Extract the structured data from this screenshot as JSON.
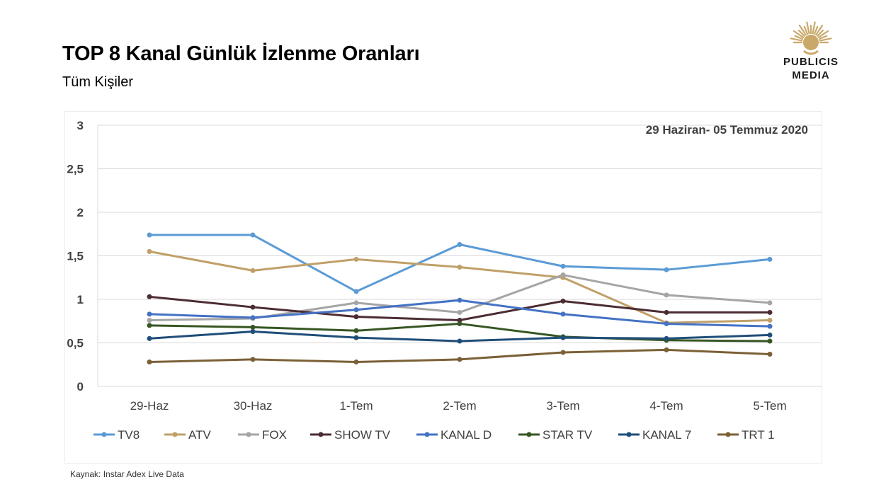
{
  "header": {
    "title": "TOP 8 Kanal Günlük İzlenme Oranları",
    "subtitle": "Tüm Kişiler"
  },
  "logo": {
    "line1": "PUBLICIS",
    "line2": "MEDIA",
    "color": "#c9a86a"
  },
  "source": "Kaynak: Instar  Adex Live Data",
  "chart_data": {
    "type": "line",
    "date_range_label": "29 Haziran- 05 Temmuz 2020",
    "categories": [
      "29-Haz",
      "30-Haz",
      "1-Tem",
      "2-Tem",
      "3-Tem",
      "4-Tem",
      "5-Tem"
    ],
    "ylim": [
      0,
      3
    ],
    "yticks": [
      0,
      0.5,
      1,
      1.5,
      2,
      2.5,
      3
    ],
    "ytick_labels": [
      "0",
      "0,5",
      "1",
      "1,5",
      "2",
      "2,5",
      "3"
    ],
    "grid": true,
    "legend_position": "bottom",
    "series": [
      {
        "name": "TV8",
        "color": "#5b9bd5",
        "values": [
          1.74,
          1.74,
          1.09,
          1.63,
          1.38,
          1.34,
          1.46
        ]
      },
      {
        "name": "ATV",
        "color": "#c0a068",
        "values": [
          1.55,
          1.33,
          1.46,
          1.37,
          1.25,
          0.73,
          0.76
        ]
      },
      {
        "name": "FOX",
        "color": "#a5a5a5",
        "values": [
          0.76,
          0.78,
          0.96,
          0.85,
          1.28,
          1.05,
          0.96
        ]
      },
      {
        "name": "SHOW TV",
        "color": "#4b2c32",
        "values": [
          1.03,
          0.91,
          0.8,
          0.76,
          0.98,
          0.85,
          0.85
        ]
      },
      {
        "name": "KANAL D",
        "color": "#4472c4",
        "values": [
          0.83,
          0.79,
          0.88,
          0.99,
          0.83,
          0.72,
          0.69
        ]
      },
      {
        "name": "STAR TV",
        "color": "#375623",
        "values": [
          0.7,
          0.68,
          0.64,
          0.72,
          0.57,
          0.53,
          0.52
        ]
      },
      {
        "name": "KANAL 7",
        "color": "#1f4e79",
        "values": [
          0.55,
          0.63,
          0.56,
          0.52,
          0.56,
          0.55,
          0.59
        ]
      },
      {
        "name": "TRT 1",
        "color": "#7b6036",
        "values": [
          0.28,
          0.31,
          0.28,
          0.31,
          0.39,
          0.42,
          0.37
        ]
      }
    ]
  }
}
